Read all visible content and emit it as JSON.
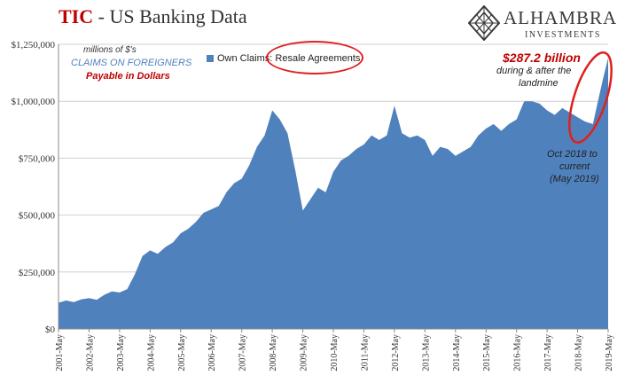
{
  "header": {
    "title_main": "TIC",
    "title_rest": " - US Banking Data"
  },
  "logo": {
    "name": "ALHAMBRA",
    "subtitle": "INVESTMENTS",
    "icon": "diamond-lattice-icon"
  },
  "notes": {
    "units": "millions of $'s",
    "series_desc": "CLAIMS ON FOREIGNERS",
    "payable": "Payable in Dollars",
    "increase": "$287.2 billion",
    "increase_desc_1": "during & after the",
    "increase_desc_2": "landmine",
    "period_1": "Oct 2018 to",
    "period_2": "current",
    "period_3": "(May 2019)"
  },
  "colors": {
    "area": "#4f81bd",
    "accent": "#e02020",
    "title_red": "#c00000",
    "note_blue": "#4f81bd"
  },
  "chart_data": {
    "type": "area",
    "x_start": "2001-05",
    "x_end": "2019-05",
    "x_step": "month",
    "series": [
      {
        "name": "Own Claims: Resale Agreements",
        "points": [
          [
            "2001-05",
            115000
          ],
          [
            "2001-08",
            125000
          ],
          [
            "2001-11",
            118000
          ],
          [
            "2002-02",
            130000
          ],
          [
            "2002-05",
            135000
          ],
          [
            "2002-08",
            128000
          ],
          [
            "2002-11",
            150000
          ],
          [
            "2003-02",
            165000
          ],
          [
            "2003-05",
            160000
          ],
          [
            "2003-08",
            175000
          ],
          [
            "2003-11",
            240000
          ],
          [
            "2004-02",
            320000
          ],
          [
            "2004-05",
            345000
          ],
          [
            "2004-08",
            330000
          ],
          [
            "2004-11",
            360000
          ],
          [
            "2005-02",
            380000
          ],
          [
            "2005-05",
            420000
          ],
          [
            "2005-08",
            440000
          ],
          [
            "2005-11",
            470000
          ],
          [
            "2006-02",
            510000
          ],
          [
            "2006-05",
            525000
          ],
          [
            "2006-08",
            540000
          ],
          [
            "2006-11",
            600000
          ],
          [
            "2007-02",
            640000
          ],
          [
            "2007-05",
            660000
          ],
          [
            "2007-08",
            720000
          ],
          [
            "2007-11",
            800000
          ],
          [
            "2008-02",
            850000
          ],
          [
            "2008-05",
            960000
          ],
          [
            "2008-08",
            920000
          ],
          [
            "2008-11",
            860000
          ],
          [
            "2009-02",
            700000
          ],
          [
            "2009-05",
            520000
          ],
          [
            "2009-08",
            570000
          ],
          [
            "2009-11",
            620000
          ],
          [
            "2010-02",
            600000
          ],
          [
            "2010-05",
            690000
          ],
          [
            "2010-08",
            740000
          ],
          [
            "2010-11",
            760000
          ],
          [
            "2011-02",
            790000
          ],
          [
            "2011-05",
            810000
          ],
          [
            "2011-08",
            850000
          ],
          [
            "2011-11",
            830000
          ],
          [
            "2012-02",
            850000
          ],
          [
            "2012-05",
            980000
          ],
          [
            "2012-08",
            860000
          ],
          [
            "2012-11",
            840000
          ],
          [
            "2013-02",
            850000
          ],
          [
            "2013-05",
            830000
          ],
          [
            "2013-08",
            760000
          ],
          [
            "2013-11",
            800000
          ],
          [
            "2014-02",
            790000
          ],
          [
            "2014-05",
            760000
          ],
          [
            "2014-08",
            780000
          ],
          [
            "2014-11",
            800000
          ],
          [
            "2015-02",
            850000
          ],
          [
            "2015-05",
            880000
          ],
          [
            "2015-08",
            900000
          ],
          [
            "2015-11",
            870000
          ],
          [
            "2016-02",
            900000
          ],
          [
            "2016-05",
            920000
          ],
          [
            "2016-08",
            1000000
          ],
          [
            "2016-11",
            1000000
          ],
          [
            "2017-02",
            990000
          ],
          [
            "2017-05",
            960000
          ],
          [
            "2017-08",
            940000
          ],
          [
            "2017-11",
            970000
          ],
          [
            "2018-02",
            950000
          ],
          [
            "2018-05",
            930000
          ],
          [
            "2018-08",
            910000
          ],
          [
            "2018-11",
            900000
          ],
          [
            "2019-01",
            1000000
          ],
          [
            "2019-03",
            1100000
          ],
          [
            "2019-05",
            1190000
          ]
        ]
      }
    ],
    "ylabel": "",
    "xlabel": "",
    "ylim": [
      0,
      1250000
    ],
    "y_ticks": [
      0,
      250000,
      500000,
      750000,
      1000000,
      1250000
    ],
    "y_tick_labels": [
      "$0",
      "$250,000",
      "$500,000",
      "$750,000",
      "$1,000,000",
      "$1,250,000"
    ],
    "x_tick_labels": [
      "2001-May",
      "2002-May",
      "2003-May",
      "2004-May",
      "2005-May",
      "2006-May",
      "2007-May",
      "2008-May",
      "2009-May",
      "2010-May",
      "2011-May",
      "2012-May",
      "2013-May",
      "2014-May",
      "2015-May",
      "2016-May",
      "2017-May",
      "2018-May",
      "2019-May"
    ],
    "grid": "horizontal",
    "legend": "top"
  }
}
